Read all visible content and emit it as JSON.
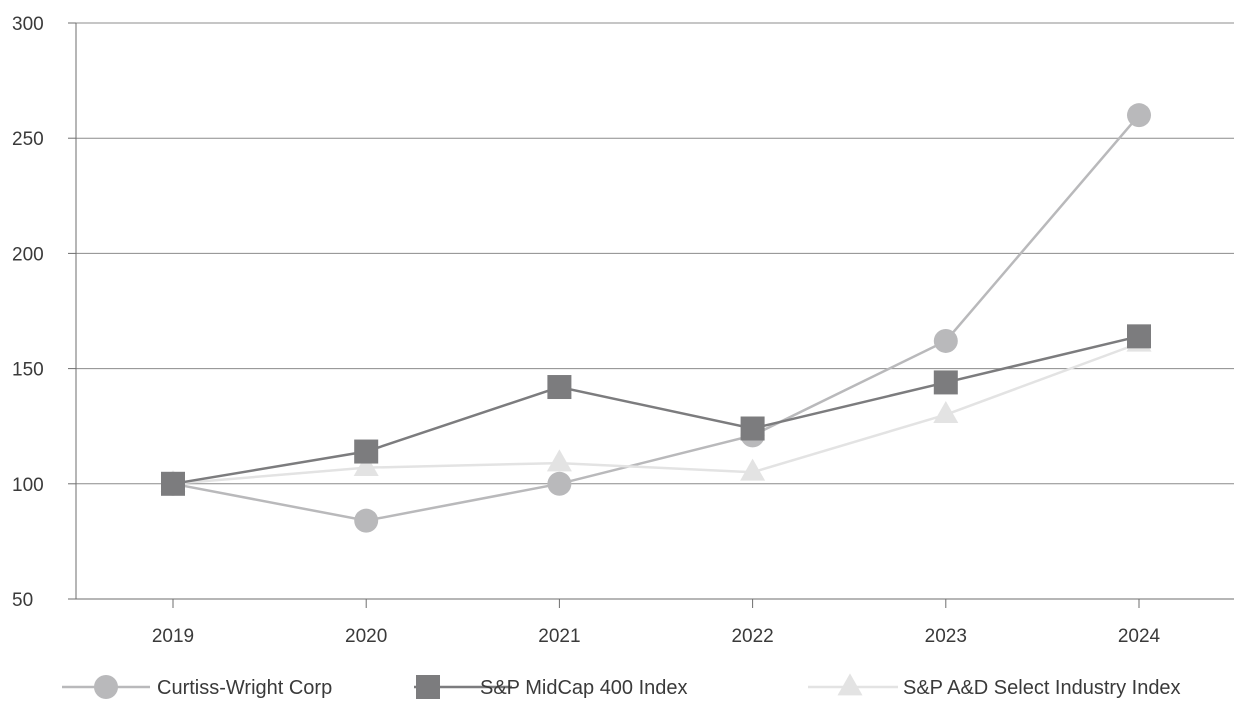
{
  "chart_data": {
    "type": "line",
    "categories": [
      "2019",
      "2020",
      "2021",
      "2022",
      "2023",
      "2024"
    ],
    "y_ticks": [
      50,
      100,
      150,
      200,
      250,
      300
    ],
    "ylim": [
      50,
      300
    ],
    "grid": true,
    "legend_position": "bottom",
    "series": [
      {
        "name": "Curtiss-Wright Corp",
        "marker": "circle",
        "color": "#b9b9bb",
        "values": [
          100,
          84,
          100,
          121,
          162,
          260
        ]
      },
      {
        "name": "S&P MidCap 400 Index",
        "marker": "square",
        "color": "#7c7c7e",
        "values": [
          100,
          114,
          142,
          124,
          144,
          164
        ]
      },
      {
        "name": "S&P A&D Select Industry Index",
        "marker": "triangle",
        "color": "#e3e3e3",
        "values": [
          100,
          107,
          109,
          105,
          130,
          161
        ]
      }
    ]
  }
}
